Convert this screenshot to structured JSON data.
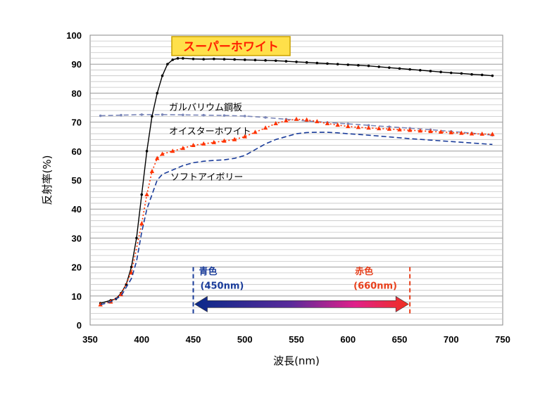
{
  "chart_data": {
    "type": "line",
    "title": "",
    "xlabel": "波長(nm)",
    "ylabel": "反射率(%)",
    "xlim": [
      350,
      750
    ],
    "ylim": [
      0,
      100
    ],
    "xticks": [
      350,
      400,
      450,
      500,
      550,
      600,
      650,
      700,
      750
    ],
    "yticks": [
      0,
      10,
      20,
      30,
      40,
      50,
      60,
      70,
      80,
      90,
      100
    ],
    "minor_grid_step": 2,
    "grid": true,
    "series": [
      {
        "name": "スーパーホワイト",
        "color": "#000000",
        "style": "solid",
        "marker": "dot",
        "x": [
          360,
          370,
          375,
          380,
          385,
          390,
          395,
          400,
          405,
          410,
          415,
          420,
          425,
          430,
          435,
          440,
          450,
          460,
          470,
          480,
          490,
          500,
          510,
          520,
          530,
          540,
          550,
          560,
          570,
          580,
          590,
          600,
          610,
          620,
          630,
          640,
          650,
          660,
          670,
          680,
          690,
          700,
          710,
          720,
          730,
          740
        ],
        "y": [
          7.5,
          8.5,
          9,
          11,
          14,
          20,
          30,
          45,
          60,
          72,
          80,
          86,
          90,
          91.5,
          92,
          92,
          91.8,
          91.7,
          91.8,
          91.7,
          91.6,
          91.5,
          91.4,
          91.3,
          91.2,
          91,
          90.8,
          90.6,
          90.4,
          90.2,
          90,
          89.8,
          89.6,
          89.4,
          89.1,
          88.8,
          88.5,
          88.2,
          87.9,
          87.6,
          87.3,
          87,
          86.8,
          86.5,
          86.3,
          86
        ]
      },
      {
        "name": "ガルバリウム鋼板",
        "color": "#7a86b8",
        "style": "dashed",
        "marker": "dot",
        "x": [
          360,
          380,
          400,
          420,
          440,
          460,
          480,
          500,
          520,
          540,
          560,
          580,
          600,
          620,
          640,
          660,
          680,
          700,
          720,
          740
        ],
        "y": [
          72.2,
          72.4,
          72.6,
          72.6,
          72.5,
          72.4,
          72.3,
          72.1,
          71.6,
          71,
          70.4,
          69.9,
          69.4,
          68.9,
          68.4,
          67.9,
          67.4,
          66.8,
          66.2,
          65.5
        ]
      },
      {
        "name": "オイスターホワイト",
        "color": "#ff3300",
        "style": "dotted",
        "marker": "triangle",
        "x": [
          360,
          370,
          380,
          390,
          400,
          405,
          410,
          415,
          420,
          430,
          440,
          450,
          460,
          470,
          480,
          490,
          500,
          510,
          520,
          530,
          540,
          550,
          560,
          570,
          580,
          590,
          600,
          610,
          620,
          630,
          640,
          650,
          660,
          670,
          680,
          690,
          700,
          710,
          720,
          730,
          740
        ],
        "y": [
          7,
          8,
          10.5,
          18,
          35,
          45,
          53,
          57.5,
          59,
          60,
          61,
          62,
          62.5,
          63,
          63.5,
          64,
          65,
          66.5,
          68,
          69.5,
          70.5,
          71,
          70.8,
          70.2,
          69.5,
          69,
          68.5,
          68.2,
          68,
          67.8,
          67.6,
          67.4,
          67.2,
          67,
          66.8,
          66.6,
          66.4,
          66.2,
          66,
          65.9,
          65.8
        ]
      },
      {
        "name": "ソフトアイボリー",
        "color": "#1a3c9a",
        "style": "dashed",
        "marker": "none",
        "x": [
          360,
          370,
          380,
          390,
          395,
          400,
          405,
          410,
          415,
          420,
          430,
          440,
          450,
          460,
          470,
          480,
          490,
          500,
          510,
          520,
          530,
          540,
          550,
          560,
          570,
          580,
          590,
          600,
          620,
          640,
          660,
          680,
          700,
          720,
          740
        ],
        "y": [
          7,
          8,
          10,
          16,
          22,
          32,
          40,
          45,
          50,
          52,
          53.5,
          55,
          56,
          56.5,
          56.8,
          57,
          57.5,
          58.5,
          60.5,
          62.5,
          64,
          65,
          66,
          66.4,
          66.5,
          66.5,
          66.3,
          66,
          65.5,
          64.9,
          64.3,
          63.8,
          63.3,
          62.8,
          62.3
        ]
      }
    ],
    "annotations": {
      "highlight": "スーパーホワイト",
      "label_galvalume": "ガルバリウム鋼板",
      "label_oyster": "オイスターホワイト",
      "label_soft": "ソフトアイボリー",
      "blue_band_name": "青色",
      "blue_band_wl": "(450nm)",
      "blue_band_x": 450,
      "red_band_name": "赤色",
      "red_band_wl": "(660nm)",
      "red_band_x": 660,
      "blue_color": "#1a3c9a",
      "red_color": "#e8401c"
    }
  }
}
